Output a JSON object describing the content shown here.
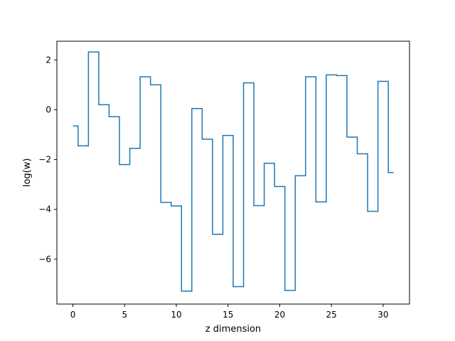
{
  "chart_data": {
    "type": "line",
    "style": "step-mid",
    "title": "",
    "xlabel": "z dimension",
    "ylabel": "log(w)",
    "xlim": [
      -1.55,
      32.55
    ],
    "ylim": [
      -7.8,
      2.75
    ],
    "xticks": [
      0,
      5,
      10,
      15,
      20,
      25,
      30
    ],
    "yticks": [
      2,
      0,
      -2,
      -4,
      -6
    ],
    "ytick_labels": [
      "2",
      "0",
      "−2",
      "−4",
      "−6"
    ],
    "grid": false,
    "series": [
      {
        "color": "#1f77b4",
        "x": [
          0,
          1,
          2,
          3,
          4,
          5,
          6,
          7,
          8,
          9,
          10,
          11,
          12,
          13,
          14,
          15,
          16,
          17,
          18,
          19,
          20,
          21,
          22,
          23,
          24,
          25,
          26,
          27,
          28,
          29,
          30,
          31
        ],
        "y": [
          -0.65,
          -1.45,
          2.32,
          0.2,
          -0.28,
          -2.2,
          -1.55,
          1.32,
          1.0,
          -3.72,
          -3.86,
          -7.28,
          0.05,
          -1.18,
          -5.0,
          -1.03,
          -7.1,
          1.08,
          -3.85,
          -2.15,
          -3.08,
          -7.25,
          -2.65,
          1.32,
          -3.7,
          1.4,
          1.37,
          -1.1,
          -1.77,
          -4.08,
          1.14,
          -2.52
        ]
      }
    ]
  }
}
